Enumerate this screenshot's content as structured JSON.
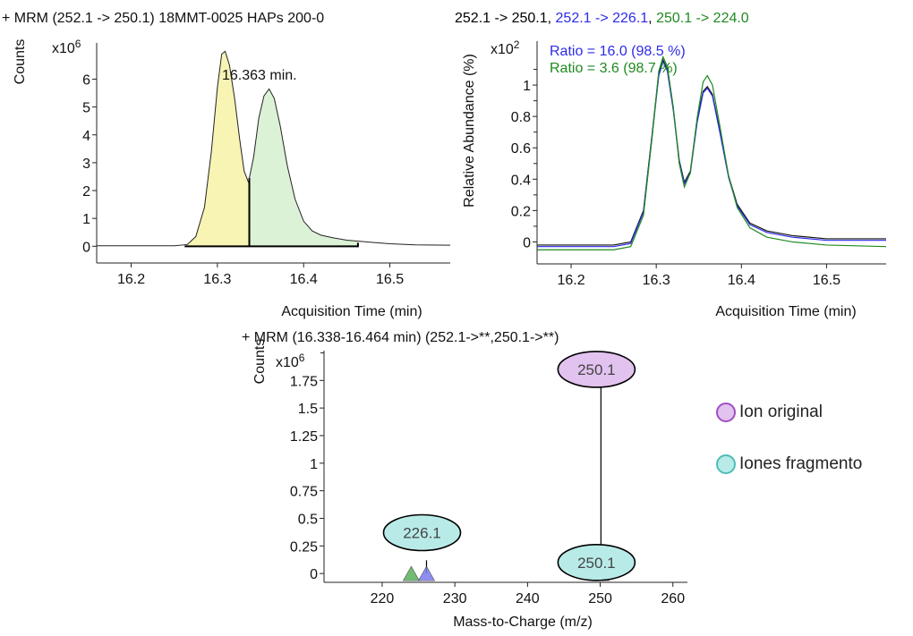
{
  "chart_data": [
    {
      "type": "area",
      "title": "+ MRM (252.1 -> 250.1) 18MMT-0025 HAPs 200-0",
      "ylabel": "Counts",
      "xlabel": "Acquisition Time (min)",
      "y_multiplier": "x10",
      "y_exponent": "6",
      "xlim": [
        16.16,
        16.57
      ],
      "ylim": [
        -0.6,
        7.3
      ],
      "xticks": [
        "16.2",
        "16.3",
        "16.4",
        "16.5"
      ],
      "yticks": [
        "0",
        "1",
        "2",
        "3",
        "4",
        "5",
        "6"
      ],
      "annotation": "16.363 min.",
      "series": [
        {
          "values": [
            [
              16.16,
              0.02
            ],
            [
              16.25,
              0.02
            ],
            [
              16.265,
              0.06
            ],
            [
              16.275,
              0.35
            ],
            [
              16.285,
              1.4
            ],
            [
              16.293,
              3.4
            ],
            [
              16.3,
              5.7
            ],
            [
              16.305,
              6.9
            ],
            [
              16.309,
              7.0
            ],
            [
              16.314,
              6.5
            ],
            [
              16.32,
              5.3
            ],
            [
              16.326,
              3.8
            ],
            [
              16.331,
              2.7
            ],
            [
              16.336,
              2.3
            ],
            [
              16.342,
              3.2
            ],
            [
              16.348,
              4.6
            ],
            [
              16.354,
              5.4
            ],
            [
              16.36,
              5.65
            ],
            [
              16.366,
              5.3
            ],
            [
              16.373,
              4.3
            ],
            [
              16.381,
              2.9
            ],
            [
              16.39,
              1.7
            ],
            [
              16.4,
              0.9
            ],
            [
              16.41,
              0.55
            ],
            [
              16.42,
              0.4
            ],
            [
              16.435,
              0.3
            ],
            [
              16.45,
              0.22
            ],
            [
              16.465,
              0.18
            ],
            [
              16.48,
              0.14
            ],
            [
              16.5,
              0.09
            ],
            [
              16.53,
              0.05
            ],
            [
              16.57,
              0.04
            ]
          ]
        }
      ],
      "integration_regions": [
        {
          "from": 16.262,
          "to": 16.337,
          "color": "#f7f4b4"
        },
        {
          "from": 16.337,
          "to": 16.463,
          "color": "#dcf2d6"
        }
      ],
      "baseline": {
        "from": 16.262,
        "to": 16.463
      }
    },
    {
      "type": "line",
      "title_parts": [
        {
          "text": "252.1 -> 250.1",
          "color": "#000000"
        },
        {
          "text": ", ",
          "color": "#000000"
        },
        {
          "text": "252.1 -> 226.1",
          "color": "#2c2ce8"
        },
        {
          "text": ", ",
          "color": "#000000"
        },
        {
          "text": "250.1 -> 224.0",
          "color": "#1f8a1f"
        }
      ],
      "ylabel": "Relative Abundance (%)",
      "xlabel": "Acquisition Time (min)",
      "y_multiplier": "x10",
      "y_exponent": "2",
      "xlim": [
        16.16,
        16.57
      ],
      "ylim": [
        -0.14,
        1.28
      ],
      "xticks": [
        "16.2",
        "16.3",
        "16.4",
        "16.5"
      ],
      "yticks": [
        "0",
        "0.2",
        "0.4",
        "0.6",
        "0.8",
        "1"
      ],
      "annotations": [
        {
          "text": "Ratio = 16.0 (98.5 %)",
          "color": "#2c2ce8"
        },
        {
          "text": "Ratio = 3.6 (98.7 %)",
          "color": "#1f8a1f"
        }
      ],
      "series": [
        {
          "color": "#111111",
          "values": [
            [
              16.16,
              -0.02
            ],
            [
              16.25,
              -0.02
            ],
            [
              16.27,
              0.0
            ],
            [
              16.285,
              0.2
            ],
            [
              16.295,
              0.68
            ],
            [
              16.303,
              1.08
            ],
            [
              16.308,
              1.16
            ],
            [
              16.313,
              1.1
            ],
            [
              16.32,
              0.85
            ],
            [
              16.327,
              0.52
            ],
            [
              16.333,
              0.38
            ],
            [
              16.34,
              0.45
            ],
            [
              16.348,
              0.78
            ],
            [
              16.355,
              0.96
            ],
            [
              16.36,
              0.99
            ],
            [
              16.366,
              0.94
            ],
            [
              16.375,
              0.7
            ],
            [
              16.385,
              0.42
            ],
            [
              16.395,
              0.24
            ],
            [
              16.41,
              0.12
            ],
            [
              16.43,
              0.07
            ],
            [
              16.46,
              0.04
            ],
            [
              16.5,
              0.02
            ],
            [
              16.57,
              0.02
            ]
          ]
        },
        {
          "color": "#2c2ce8",
          "values": [
            [
              16.16,
              -0.03
            ],
            [
              16.25,
              -0.03
            ],
            [
              16.27,
              -0.01
            ],
            [
              16.285,
              0.19
            ],
            [
              16.295,
              0.67
            ],
            [
              16.303,
              1.06
            ],
            [
              16.308,
              1.15
            ],
            [
              16.313,
              1.09
            ],
            [
              16.32,
              0.84
            ],
            [
              16.327,
              0.51
            ],
            [
              16.333,
              0.37
            ],
            [
              16.34,
              0.44
            ],
            [
              16.348,
              0.76
            ],
            [
              16.355,
              0.95
            ],
            [
              16.36,
              0.98
            ],
            [
              16.366,
              0.93
            ],
            [
              16.375,
              0.69
            ],
            [
              16.385,
              0.41
            ],
            [
              16.395,
              0.23
            ],
            [
              16.41,
              0.11
            ],
            [
              16.43,
              0.06
            ],
            [
              16.46,
              0.03
            ],
            [
              16.5,
              0.01
            ],
            [
              16.57,
              0.01
            ]
          ]
        },
        {
          "color": "#1f8a1f",
          "values": [
            [
              16.16,
              -0.05
            ],
            [
              16.25,
              -0.05
            ],
            [
              16.27,
              -0.03
            ],
            [
              16.285,
              0.17
            ],
            [
              16.295,
              0.66
            ],
            [
              16.303,
              1.09
            ],
            [
              16.308,
              1.18
            ],
            [
              16.313,
              1.12
            ],
            [
              16.32,
              0.86
            ],
            [
              16.327,
              0.5
            ],
            [
              16.333,
              0.35
            ],
            [
              16.34,
              0.44
            ],
            [
              16.348,
              0.79
            ],
            [
              16.355,
              1.02
            ],
            [
              16.36,
              1.06
            ],
            [
              16.366,
              1.0
            ],
            [
              16.375,
              0.73
            ],
            [
              16.385,
              0.42
            ],
            [
              16.395,
              0.22
            ],
            [
              16.41,
              0.09
            ],
            [
              16.43,
              0.03
            ],
            [
              16.46,
              0.0
            ],
            [
              16.5,
              -0.02
            ],
            [
              16.57,
              -0.03
            ]
          ]
        }
      ]
    },
    {
      "type": "bar",
      "title": "+ MRM (16.338-16.464 min) (252.1->**,250.1->**)",
      "ylabel": "Counts",
      "xlabel": "Mass-to-Charge (m/z)",
      "y_multiplier": "x10",
      "y_exponent": "6",
      "xlim": [
        212,
        262
      ],
      "ylim": [
        -0.08,
        2.02
      ],
      "xticks": [
        "220",
        "230",
        "240",
        "250",
        "260"
      ],
      "yticks": [
        "0",
        "0.25",
        "0.5",
        "0.75",
        "1",
        "1.25",
        "1.5",
        "1.75"
      ],
      "sticks": [
        {
          "mz": 226.1,
          "intensity": 0.12,
          "label": "226.1",
          "label_fill": "#b8ebe8",
          "label_y": 0.37
        },
        {
          "mz": 250.1,
          "intensity": 1.85,
          "label": "250.1",
          "label_fill": "#e2c2ee",
          "label_y": 1.85
        },
        {
          "mz": 250.1,
          "intensity": 0.12,
          "label": "250.1",
          "label_fill": "#b8ebe8",
          "label_y": 0.1
        }
      ],
      "markers": [
        {
          "mz": 224.0,
          "shape": "triangle",
          "color": "#5ab05a"
        },
        {
          "mz": 226.1,
          "shape": "triangle",
          "color": "#7b7bf0"
        },
        {
          "mz": 250.1,
          "shape": "triangle",
          "color": "#666666"
        },
        {
          "mz": 250.1,
          "shape": "diamond",
          "color": "#1a3ae0",
          "y": 0.07
        },
        {
          "mz": 252.1,
          "shape": "diamond",
          "color": "#1a3ae0",
          "y": 0.07
        }
      ]
    }
  ],
  "legend": {
    "items": [
      {
        "label": "Ion original",
        "color": "#e2c2ee"
      },
      {
        "label": "Iones fragmento",
        "color": "#b8ebe8"
      }
    ]
  }
}
